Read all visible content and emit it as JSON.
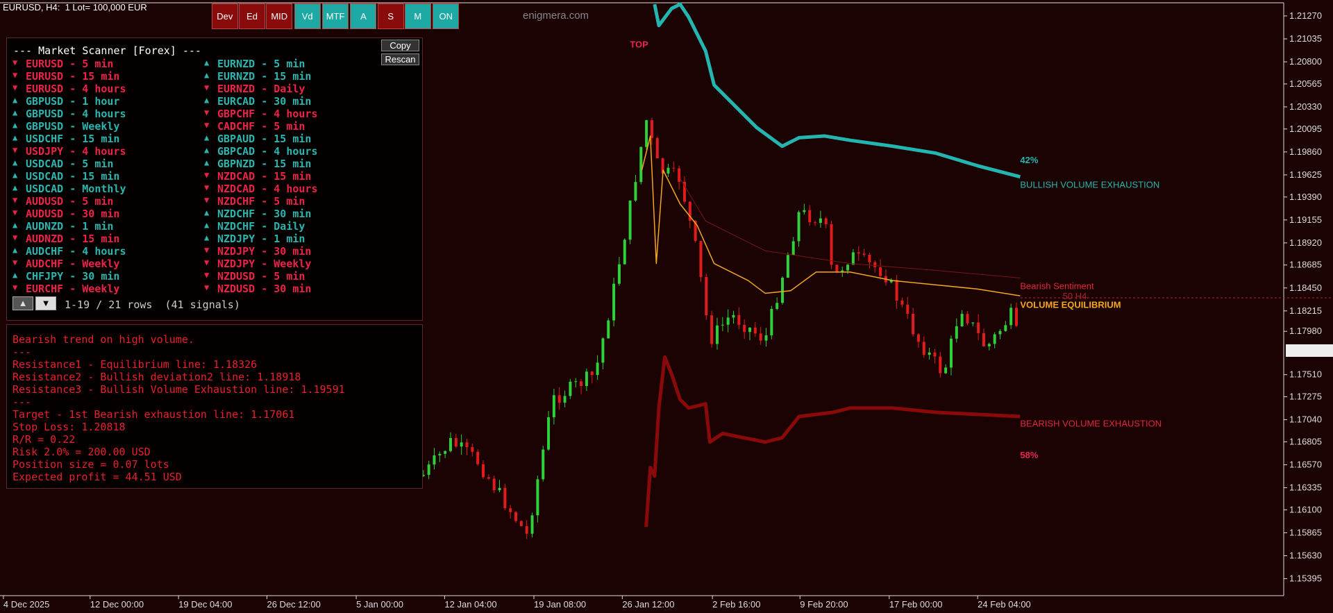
{
  "header": {
    "symbol": "EURUSD, H4:  1 Lot= 100,000 EUR",
    "watermark": "enigmera.com"
  },
  "toolbar": [
    {
      "label": "Dev",
      "color": "#8a0b0b"
    },
    {
      "label": "Ed",
      "color": "#8a0b0b"
    },
    {
      "label": "MID",
      "color": "#8a0b0b"
    },
    {
      "label": "Vd",
      "color": "#1ea9a4"
    },
    {
      "label": "MTF",
      "color": "#1ea9a4"
    },
    {
      "label": "A",
      "color": "#1ea9a4"
    },
    {
      "label": "S",
      "color": "#8a0b0b"
    },
    {
      "label": "M",
      "color": "#1ea9a4"
    },
    {
      "label": "ON",
      "color": "#1ea9a4"
    }
  ],
  "scanner": {
    "title": "--- Market Scanner [Forex] ---",
    "buttons": [
      "Copy",
      "Rescan"
    ],
    "columns": [
      [
        {
          "arrow": "▼",
          "text": "EURUSD - 5 min",
          "color": "#ec2346"
        },
        {
          "arrow": "▼",
          "text": "EURUSD - 15 min",
          "color": "#ec2346"
        },
        {
          "arrow": "▼",
          "text": "EURUSD - 4 hours",
          "color": "#ec2346"
        },
        {
          "arrow": "▲",
          "text": "GBPUSD - 1 hour",
          "color": "#2bb5ae"
        },
        {
          "arrow": "▲",
          "text": "GBPUSD - 4 hours",
          "color": "#2bb5ae"
        },
        {
          "arrow": "▲",
          "text": "GBPUSD - Weekly",
          "color": "#2bb5ae"
        },
        {
          "arrow": "▲",
          "text": "USDCHF - 15 min",
          "color": "#2bb5ae"
        },
        {
          "arrow": "▼",
          "text": "USDJPY - 4 hours",
          "color": "#ec2346"
        },
        {
          "arrow": "▲",
          "text": "USDCAD - 5 min",
          "color": "#2bb5ae"
        },
        {
          "arrow": "▲",
          "text": "USDCAD - 15 min",
          "color": "#2bb5ae"
        },
        {
          "arrow": "▲",
          "text": "USDCAD - Monthly",
          "color": "#2bb5ae"
        },
        {
          "arrow": "▼",
          "text": "AUDUSD - 5 min",
          "color": "#ec2346"
        },
        {
          "arrow": "▼",
          "text": "AUDUSD - 30 min",
          "color": "#ec2346"
        },
        {
          "arrow": "▲",
          "text": "AUDNZD - 1 min",
          "color": "#2bb5ae"
        },
        {
          "arrow": "▼",
          "text": "AUDNZD - 15 min",
          "color": "#ec2346"
        },
        {
          "arrow": "▲",
          "text": "AUDCHF - 4 hours",
          "color": "#2bb5ae"
        },
        {
          "arrow": "▼",
          "text": "AUDCHF - Weekly",
          "color": "#ec2346"
        },
        {
          "arrow": "▲",
          "text": "CHFJPY - 30 min",
          "color": "#2bb5ae"
        },
        {
          "arrow": "▼",
          "text": "EURCHF - Weekly",
          "color": "#ec2346"
        }
      ],
      [
        {
          "arrow": "▲",
          "text": "EURNZD - 5 min",
          "color": "#2bb5ae"
        },
        {
          "arrow": "▲",
          "text": "EURNZD - 15 min",
          "color": "#2bb5ae"
        },
        {
          "arrow": "▼",
          "text": "EURNZD - Daily",
          "color": "#ec2346"
        },
        {
          "arrow": "▲",
          "text": "EURCAD - 30 min",
          "color": "#2bb5ae"
        },
        {
          "arrow": "▼",
          "text": "GBPCHF - 4 hours",
          "color": "#ec2346"
        },
        {
          "arrow": "▼",
          "text": "CADCHF - 5 min",
          "color": "#ec2346"
        },
        {
          "arrow": "▲",
          "text": "GBPAUD - 15 min",
          "color": "#2bb5ae"
        },
        {
          "arrow": "▲",
          "text": "GBPCAD - 4 hours",
          "color": "#2bb5ae"
        },
        {
          "arrow": "▲",
          "text": "GBPNZD - 15 min",
          "color": "#2bb5ae"
        },
        {
          "arrow": "▼",
          "text": "NZDCAD - 15 min",
          "color": "#ec2346"
        },
        {
          "arrow": "▼",
          "text": "NZDCAD - 4 hours",
          "color": "#ec2346"
        },
        {
          "arrow": "▼",
          "text": "NZDCHF - 5 min",
          "color": "#ec2346"
        },
        {
          "arrow": "▲",
          "text": "NZDCHF - 30 min",
          "color": "#2bb5ae"
        },
        {
          "arrow": "▲",
          "text": "NZDCHF - Daily",
          "color": "#2bb5ae"
        },
        {
          "arrow": "▲",
          "text": "NZDJPY - 1 min",
          "color": "#2bb5ae"
        },
        {
          "arrow": "▼",
          "text": "NZDJPY - 30 min",
          "color": "#ec2346"
        },
        {
          "arrow": "▼",
          "text": "NZDJPY - Weekly",
          "color": "#ec2346"
        },
        {
          "arrow": "▼",
          "text": "NZDUSD - 5 min",
          "color": "#ec2346"
        },
        {
          "arrow": "▼",
          "text": "NZDUSD - 30 min",
          "color": "#ec2346"
        }
      ]
    ],
    "pager": [
      "▲",
      "▼"
    ],
    "status": "1-19 / 21 rows  (41 signals)"
  },
  "info_panel": {
    "lines": [
      "Bearish trend on high volume.",
      "---",
      "Resistance1 - Equilibrium line: 1.18326",
      "Resistance2 - Bullish deviation2 line: 1.18918",
      "Resistance3 - Bullish Volume Exhaustion line: 1.19591",
      "---",
      "Target - 1st Bearish exhaustion line: 1.17061",
      "Stop Loss: 1.20818",
      "R/R = 0.22",
      "Risk 2.0% = 200.00 USD",
      "Position size = 0.07 lots",
      "Expected profit = 44.51 USD"
    ]
  },
  "chart": {
    "annotations": [
      {
        "text": "TOP",
        "color": "#e8274e"
      },
      {
        "text": "42%",
        "color": "#2bb5ae"
      },
      {
        "text": "BULLISH VOLUME EXHAUSTION",
        "color": "#2bb5ae"
      },
      {
        "text": "Bearish Sentiment",
        "color": "#e0283c"
      },
      {
        "text": "50 H4",
        "color": "#b0202c"
      },
      {
        "text": "VOLUME EQUILIBRIUM",
        "color": "#f5a623"
      },
      {
        "text": "BEARISH VOLUME EXHAUSTION",
        "color": "#e0283c"
      },
      {
        "text": "58%",
        "color": "#e8274e"
      }
    ],
    "price_axis": [
      "1.21270",
      "1.21035",
      "1.20800",
      "1.20565",
      "1.20330",
      "1.20095",
      "1.19860",
      "1.19625",
      "1.19390",
      "1.19155",
      "1.18920",
      "1.18685",
      "1.18450",
      "1.18215",
      "1.17980",
      "1.17510",
      "1.17275",
      "1.17040",
      "1.16805",
      "1.16570",
      "1.16335",
      "1.16100",
      "1.15865",
      "1.15630",
      "1.15395"
    ],
    "time_axis": [
      "4 Dec 2025",
      "12 Dec 00:00",
      "19 Dec 04:00",
      "26 Dec 12:00",
      "5 Jan 00:00",
      "12 Jan 04:00",
      "19 Jan 08:00",
      "26 Jan 12:00",
      "2 Feb 16:00",
      "9 Feb 20:00",
      "17 Feb 00:00",
      "24 Feb 04:00"
    ]
  }
}
